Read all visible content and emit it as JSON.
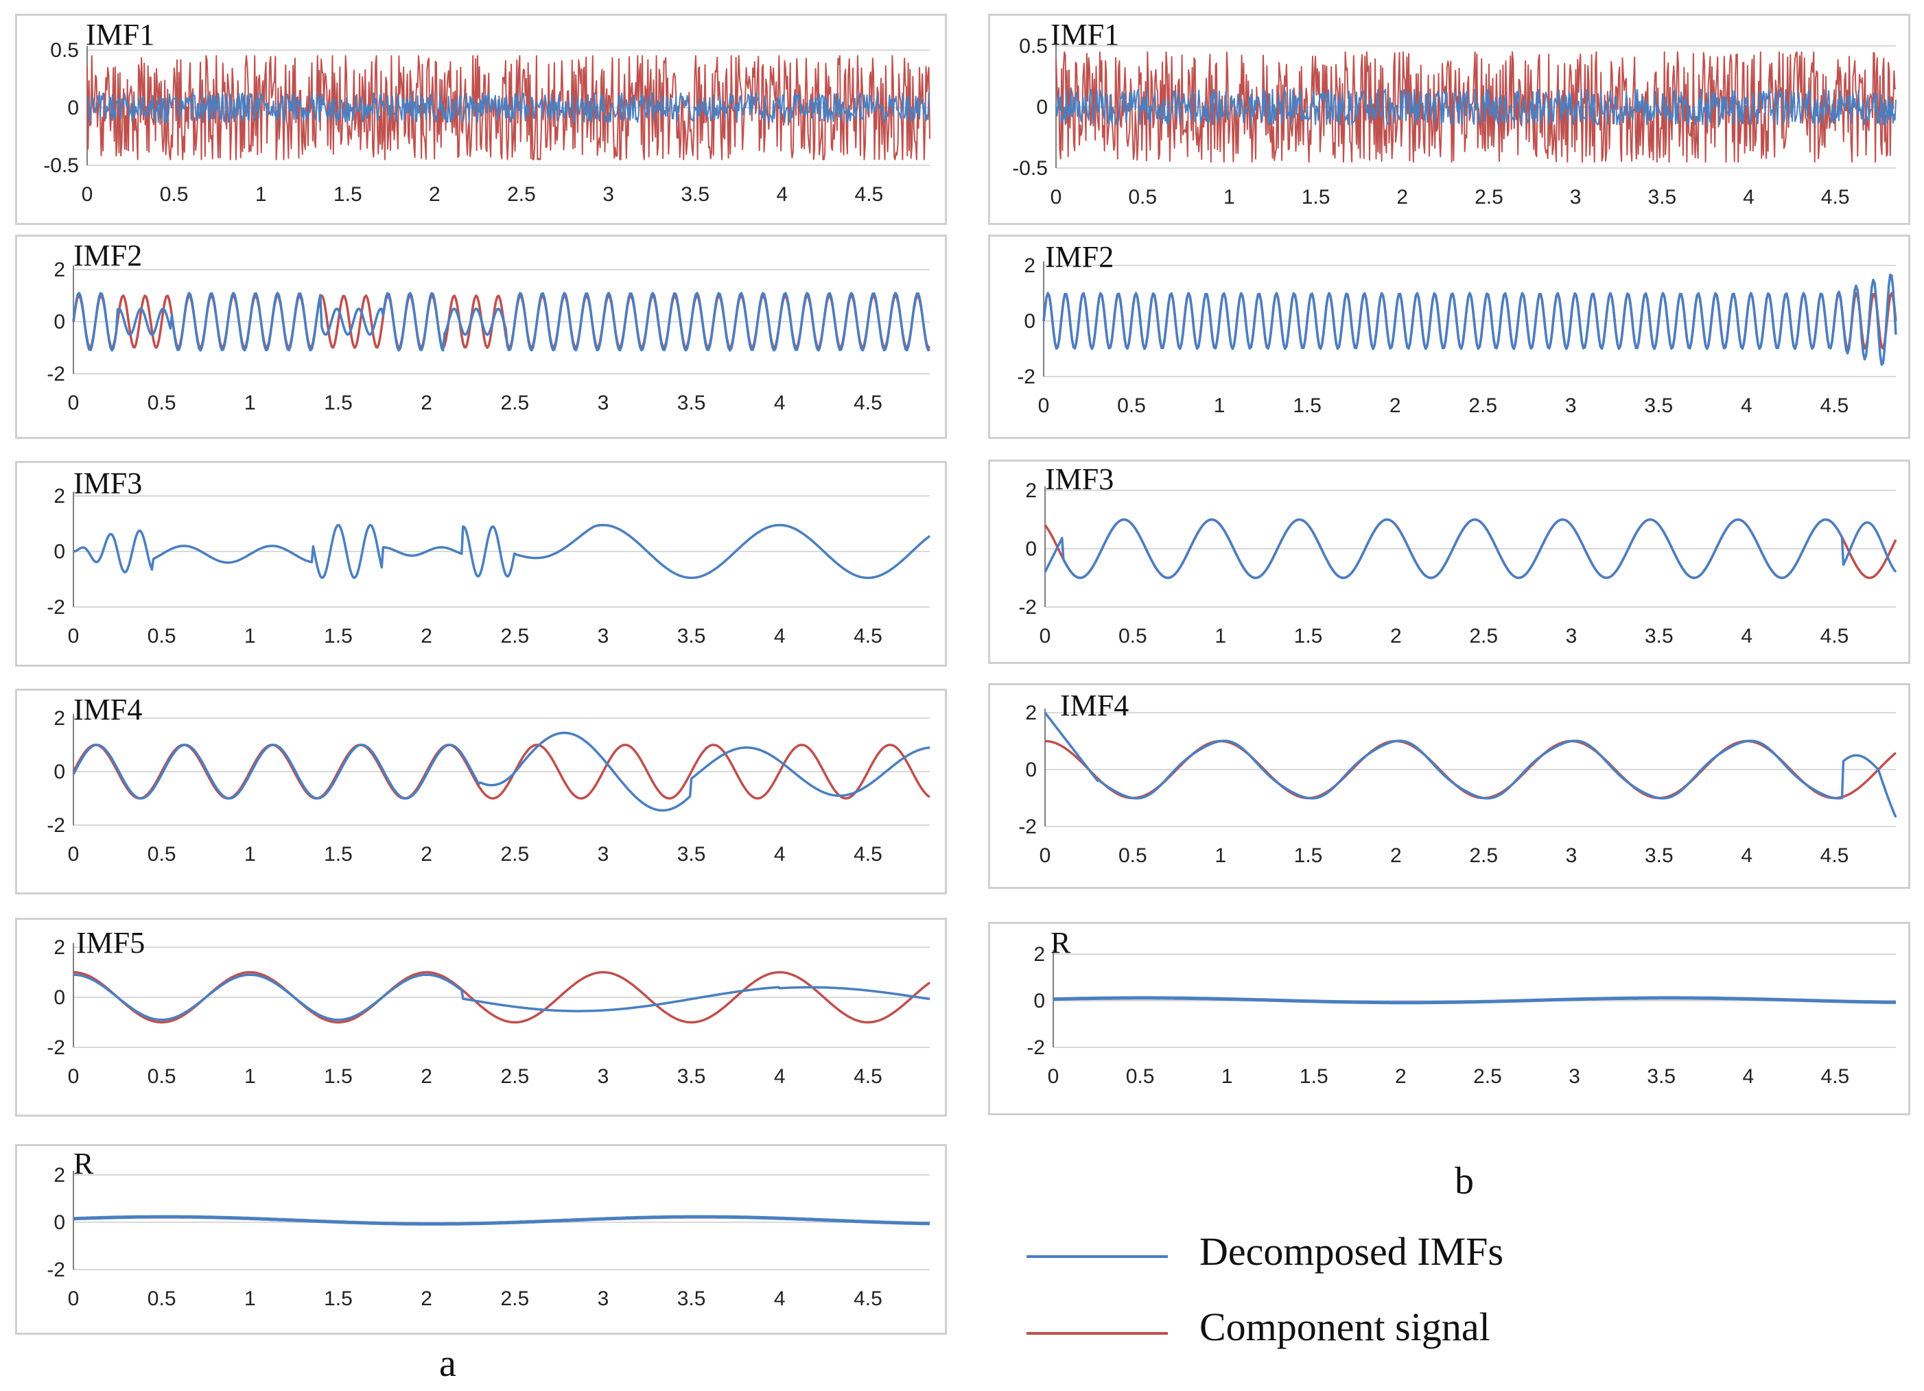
{
  "colors": {
    "imf": "#4a7fc1",
    "component": "#c0504d",
    "axis": "#7f7f7f",
    "grid": "#d9d9d9"
  },
  "captions": {
    "a": "a",
    "b": "b"
  },
  "legend": {
    "decomposed": "Decomposed IMFs",
    "component": "Component signal"
  },
  "chart_data": [
    {
      "id": "a1",
      "column": "a",
      "title": "IMF1",
      "type": "line",
      "xlim": [
        0,
        4.85
      ],
      "ylim": [
        -0.5,
        0.5
      ],
      "xticks": [
        "0",
        "0.5",
        "1",
        "1.5",
        "2",
        "2.5",
        "3",
        "3.5",
        "4",
        "4.5"
      ],
      "yticks": [
        "0.5",
        "0",
        "-0.5"
      ],
      "series": [
        {
          "name": "Component signal",
          "kind": "noise",
          "amp": 0.5,
          "seed": 11
        },
        {
          "name": "Decomposed IMFs",
          "kind": "noise",
          "amp": 0.14,
          "seed": 5
        }
      ]
    },
    {
      "id": "a2",
      "column": "a",
      "title": "IMF2",
      "type": "line",
      "xlim": [
        0,
        4.85
      ],
      "ylim": [
        -2,
        2
      ],
      "xticks": [
        "0",
        "0.5",
        "1",
        "1.5",
        "2",
        "2.5",
        "3",
        "3.5",
        "4",
        "4.5"
      ],
      "yticks": [
        "2",
        "0",
        "-2"
      ],
      "series": [
        {
          "name": "Component signal",
          "kind": "sine",
          "freq": 8,
          "amp": 1,
          "phase": 0
        },
        {
          "name": "Decomposed IMFs",
          "kind": "imf2a",
          "freq": 8,
          "amp": 1.1
        }
      ]
    },
    {
      "id": "a3",
      "column": "a",
      "title": "IMF3",
      "type": "line",
      "xlim": [
        0,
        4.85
      ],
      "ylim": [
        -2,
        2
      ],
      "xticks": [
        "0",
        "0.5",
        "1",
        "1.5",
        "2",
        "2.5",
        "3",
        "3.5",
        "4",
        "4.5"
      ],
      "yticks": [
        "2",
        "0",
        "-2"
      ],
      "series": [
        {
          "name": "Decomposed IMFs",
          "kind": "imf3a"
        }
      ]
    },
    {
      "id": "a4",
      "column": "a",
      "title": "IMF4",
      "type": "line",
      "xlim": [
        0,
        4.85
      ],
      "ylim": [
        -2,
        2
      ],
      "xticks": [
        "0",
        "0.5",
        "1",
        "1.5",
        "2",
        "2.5",
        "3",
        "3.5",
        "4",
        "4.5"
      ],
      "yticks": [
        "2",
        "0",
        "-2"
      ],
      "series": [
        {
          "name": "Component signal",
          "kind": "sine",
          "freq": 2,
          "amp": 1,
          "phase": 0
        },
        {
          "name": "Decomposed IMFs",
          "kind": "imf4a"
        }
      ]
    },
    {
      "id": "a5",
      "column": "a",
      "title": "IMF5",
      "type": "line",
      "xlim": [
        0,
        4.85
      ],
      "ylim": [
        -2,
        2
      ],
      "xticks": [
        "0",
        "0.5",
        "1",
        "1.5",
        "2",
        "2.5",
        "3",
        "3.5",
        "4",
        "4.5"
      ],
      "yticks": [
        "2",
        "0",
        "-2"
      ],
      "series": [
        {
          "name": "Component signal",
          "kind": "cos",
          "freq": 1,
          "amp": 1
        },
        {
          "name": "Decomposed IMFs",
          "kind": "imf5a"
        }
      ]
    },
    {
      "id": "a6",
      "column": "a",
      "title": "R",
      "type": "line",
      "xlim": [
        0,
        4.85
      ],
      "ylim": [
        -2,
        2
      ],
      "xticks": [
        "0",
        "0.5",
        "1",
        "1.5",
        "2",
        "2.5",
        "3",
        "3.5",
        "4",
        "4.5"
      ],
      "yticks": [
        "2",
        "0",
        "-2"
      ],
      "series": [
        {
          "name": "Decomposed IMFs",
          "kind": "residual",
          "amp": 0.15,
          "offset": 0.08
        }
      ]
    },
    {
      "id": "b1",
      "column": "b",
      "title": "IMF1",
      "type": "line",
      "xlim": [
        0,
        4.85
      ],
      "ylim": [
        -0.5,
        0.5
      ],
      "xticks": [
        "0",
        "0.5",
        "1",
        "1.5",
        "2",
        "2.5",
        "3",
        "3.5",
        "4",
        "4.5"
      ],
      "yticks": [
        "0.5",
        "0",
        "-0.5"
      ],
      "series": [
        {
          "name": "Component signal",
          "kind": "noise",
          "amp": 0.5,
          "seed": 23
        },
        {
          "name": "Decomposed IMFs",
          "kind": "noise",
          "amp": 0.16,
          "seed": 7
        }
      ]
    },
    {
      "id": "b2",
      "column": "b",
      "title": "IMF2",
      "type": "line",
      "xlim": [
        0,
        4.85
      ],
      "ylim": [
        -2,
        2
      ],
      "xticks": [
        "0",
        "0.5",
        "1",
        "1.5",
        "2",
        "2.5",
        "3",
        "3.5",
        "4",
        "4.5"
      ],
      "yticks": [
        "2",
        "0",
        "-2"
      ],
      "series": [
        {
          "name": "Component signal",
          "kind": "sine",
          "freq": 10,
          "amp": 1,
          "phase": 0
        },
        {
          "name": "Decomposed IMFs",
          "kind": "imf2b",
          "freq": 10,
          "amp": 1
        }
      ]
    },
    {
      "id": "b3",
      "column": "b",
      "title": "IMF3",
      "type": "line",
      "xlim": [
        0,
        4.85
      ],
      "ylim": [
        -2,
        2
      ],
      "xticks": [
        "0",
        "0.5",
        "1",
        "1.5",
        "2",
        "2.5",
        "3",
        "3.5",
        "4",
        "4.5"
      ],
      "yticks": [
        "2",
        "0",
        "-2"
      ],
      "series": [
        {
          "name": "Component signal",
          "kind": "sine",
          "freq": 2,
          "amp": 1,
          "phase": 0.35
        },
        {
          "name": "Decomposed IMFs",
          "kind": "imf3b"
        }
      ]
    },
    {
      "id": "b4",
      "column": "b",
      "title": "IMF4",
      "type": "line",
      "xlim": [
        0,
        4.85
      ],
      "ylim": [
        -2,
        2
      ],
      "xticks": [
        "0",
        "0.5",
        "1",
        "1.5",
        "2",
        "2.5",
        "3",
        "3.5",
        "4",
        "4.5"
      ],
      "yticks": [
        "2",
        "0",
        "-2"
      ],
      "series": [
        {
          "name": "Component signal",
          "kind": "cos",
          "freq": 1,
          "amp": 1
        },
        {
          "name": "Decomposed IMFs",
          "kind": "imf4b"
        }
      ]
    },
    {
      "id": "b5",
      "column": "b",
      "title": "R",
      "type": "line",
      "xlim": [
        0,
        4.85
      ],
      "ylim": [
        -2,
        2
      ],
      "xticks": [
        "0",
        "0.5",
        "1",
        "1.5",
        "2",
        "2.5",
        "3",
        "3.5",
        "4",
        "4.5"
      ],
      "yticks": [
        "2",
        "0",
        "-2"
      ],
      "series": [
        {
          "name": "Decomposed IMFs",
          "kind": "residual",
          "amp": 0.1,
          "offset": 0.02
        }
      ]
    }
  ]
}
